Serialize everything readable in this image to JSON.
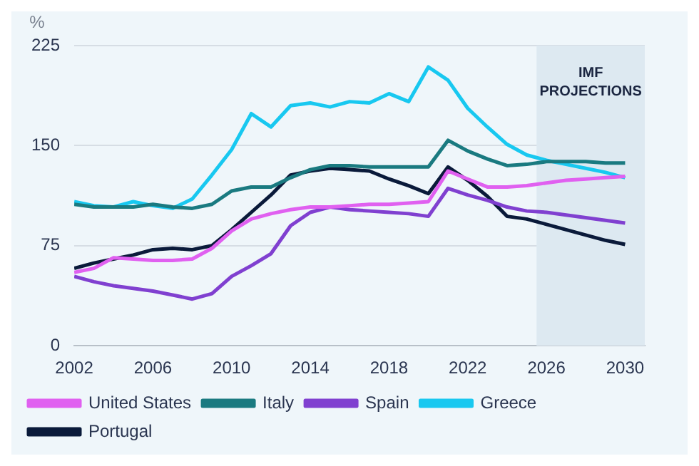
{
  "chart_data": {
    "type": "line",
    "ylabel": "%",
    "x": [
      2002,
      2003,
      2004,
      2005,
      2006,
      2007,
      2008,
      2009,
      2010,
      2011,
      2012,
      2013,
      2014,
      2015,
      2016,
      2017,
      2018,
      2019,
      2020,
      2021,
      2022,
      2023,
      2024,
      2025,
      2026,
      2027,
      2028,
      2029,
      2030
    ],
    "series": [
      {
        "name": "United States",
        "color": "#e060f0",
        "values": [
          55,
          58,
          66,
          65,
          64,
          64,
          65,
          73,
          86,
          95,
          99,
          102,
          104,
          104,
          105,
          106,
          106,
          107,
          108,
          131,
          125,
          119,
          119,
          120,
          122,
          124,
          125,
          126,
          127
        ]
      },
      {
        "name": "Italy",
        "color": "#1a7a80",
        "values": [
          106,
          104,
          104,
          104,
          106,
          104,
          103,
          106,
          116,
          119,
          119,
          126,
          132,
          135,
          135,
          134,
          134,
          134,
          134,
          154,
          146,
          140,
          135,
          136,
          138,
          138,
          138,
          137,
          137
        ]
      },
      {
        "name": "Spain",
        "color": "#8040d0",
        "values": [
          52,
          48,
          45,
          43,
          41,
          38,
          35,
          39,
          52,
          60,
          69,
          90,
          100,
          104,
          102,
          101,
          100,
          99,
          97,
          118,
          113,
          109,
          104,
          101,
          100,
          98,
          96,
          94,
          92
        ]
      },
      {
        "name": "Greece",
        "color": "#18c8f0",
        "values": [
          108,
          105,
          104,
          108,
          105,
          103,
          110,
          128,
          147,
          174,
          164,
          180,
          182,
          179,
          183,
          182,
          189,
          183,
          209,
          199,
          178,
          164,
          151,
          143,
          139,
          136,
          133,
          130,
          126
        ]
      },
      {
        "name": "Portugal",
        "color": "#0a1a3a",
        "values": [
          58,
          62,
          65,
          68,
          72,
          73,
          72,
          75,
          87,
          100,
          113,
          128,
          131,
          133,
          132,
          131,
          125,
          120,
          114,
          134,
          124,
          112,
          97,
          95,
          91,
          87,
          83,
          79,
          76
        ]
      }
    ],
    "xlim": [
      2002,
      2031
    ],
    "xticks": [
      2002,
      2006,
      2010,
      2014,
      2018,
      2022,
      2026,
      2030
    ],
    "ylim": [
      0,
      225
    ],
    "yticks": [
      0,
      75,
      150,
      225
    ],
    "bands": [
      {
        "axis": "x",
        "from": 2025.5,
        "to": 2031,
        "label": "IMF PROJECTIONS",
        "color": "#dde9f1"
      }
    ],
    "grid": "y",
    "legend": "bottom",
    "marker": "none",
    "line_style": "solid"
  }
}
